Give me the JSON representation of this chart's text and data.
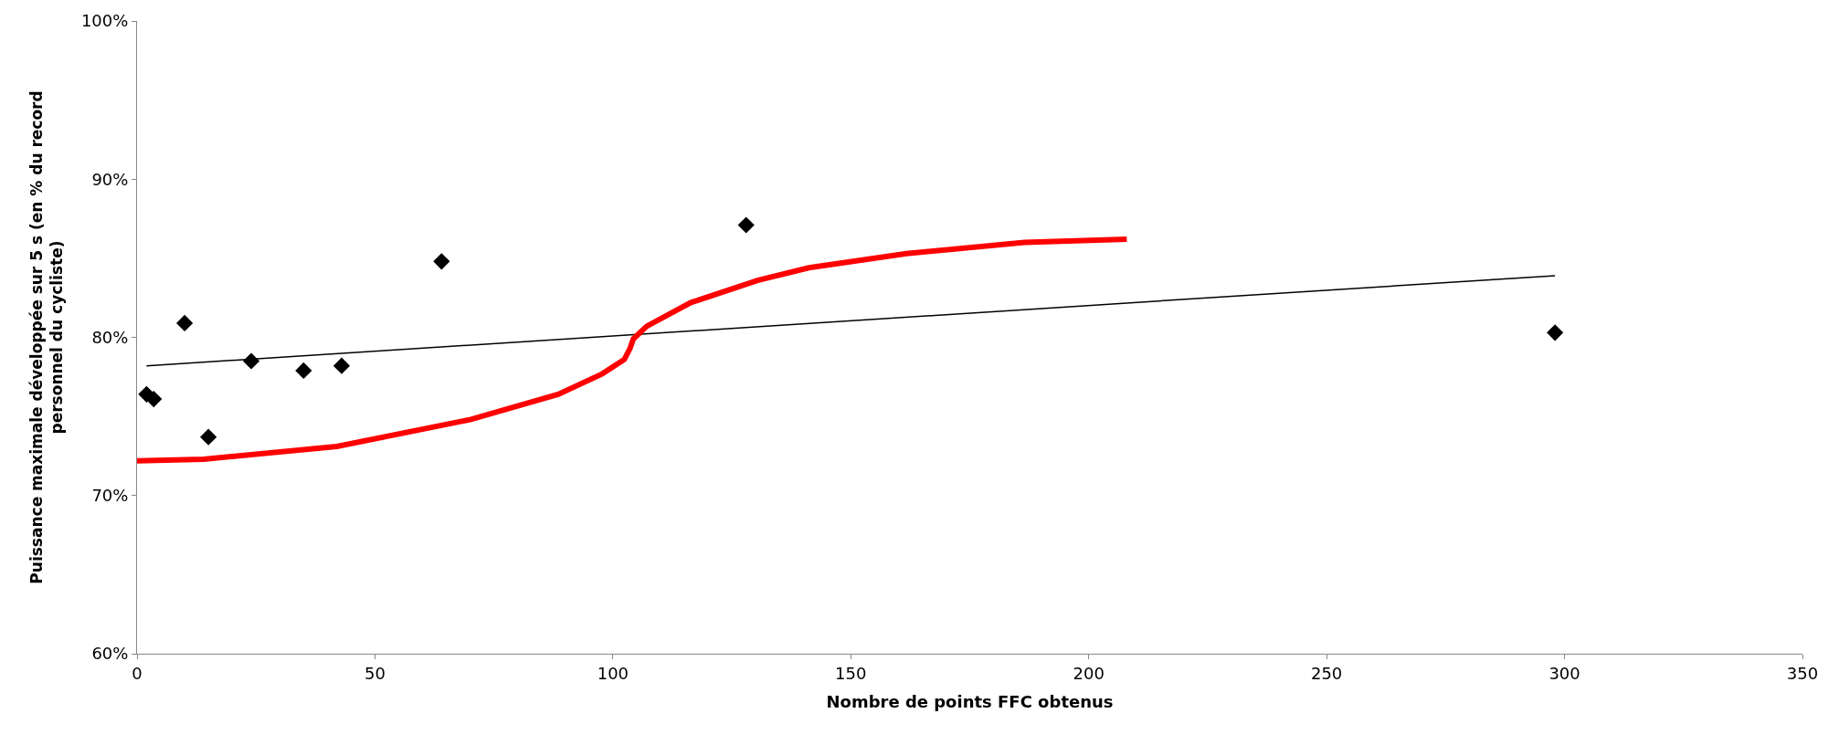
{
  "chart_data": {
    "type": "scatter",
    "xlabel": "Nombre de points FFC obtenus",
    "ylabel": "Puissance maximale développée sur 5 s (en % du record personnel du cycliste)",
    "xlim": [
      0,
      350
    ],
    "xticks": [
      0,
      50,
      100,
      150,
      200,
      250,
      300,
      350
    ],
    "ylim": [
      60,
      100
    ],
    "yticks": [
      {
        "value": 60,
        "label": "60%"
      },
      {
        "value": 70,
        "label": "70%"
      },
      {
        "value": 80,
        "label": "80%"
      },
      {
        "value": 90,
        "label": "90%"
      },
      {
        "value": 100,
        "label": "100%"
      }
    ],
    "legend": false,
    "series": [
      {
        "marker": "diamond",
        "color": "#000000",
        "x": [
          2,
          3.5,
          10,
          15,
          24,
          35,
          43,
          64,
          128,
          298
        ],
        "values": [
          76.4,
          76.1,
          80.9,
          73.7,
          78.5,
          77.9,
          78.2,
          84.8,
          87.1,
          80.3
        ]
      },
      {
        "type": "line",
        "color": "#000000",
        "x": [
          2,
          298
        ],
        "values": [
          78.2,
          83.9
        ]
      },
      {
        "type": "line",
        "color": "#ff0000",
        "x": [
          0,
          14,
          42,
          70,
          88.5,
          97.8,
          102.4,
          103.6,
          104.3,
          107.1,
          116.4,
          130.4,
          141.2,
          161.7,
          186.5,
          208
        ],
        "values": [
          72.2,
          72.3,
          73.1,
          74.8,
          76.4,
          77.7,
          78.6,
          79.3,
          79.9,
          80.7,
          82.2,
          83.6,
          84.4,
          85.3,
          86.0,
          86.2
        ]
      }
    ]
  }
}
